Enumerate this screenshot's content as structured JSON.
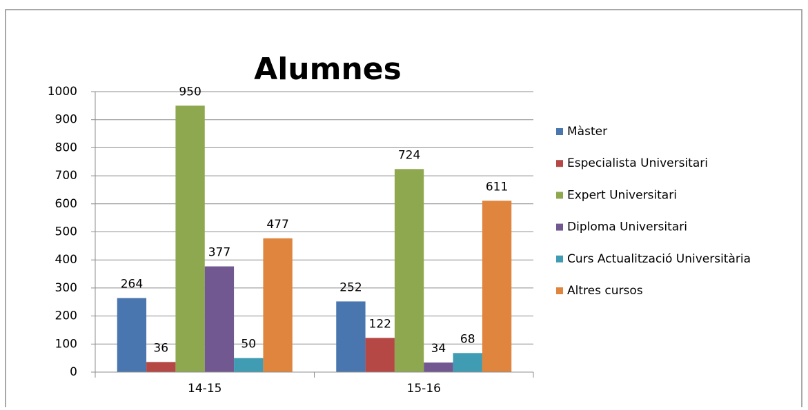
{
  "chart_data": {
    "type": "bar",
    "title": "Alumnes",
    "categories": [
      "14-15",
      "15-16"
    ],
    "series": [
      {
        "name": "Màster",
        "color": "#4a76b0",
        "values": [
          264,
          252
        ]
      },
      {
        "name": "Especialista Universitari",
        "color": "#b54845",
        "values": [
          36,
          122
        ]
      },
      {
        "name": "Expert Universitari",
        "color": "#8ea84f",
        "values": [
          950,
          724
        ]
      },
      {
        "name": "Diploma Universitari",
        "color": "#725891",
        "values": [
          377,
          34
        ]
      },
      {
        "name": "Curs Actualització Universitària",
        "color": "#3f9cb3",
        "values": [
          50,
          68
        ]
      },
      {
        "name": "Altres cursos",
        "color": "#e0853e",
        "values": [
          477,
          611
        ]
      }
    ],
    "ylim": [
      0,
      1000
    ],
    "yticks": [
      0,
      100,
      200,
      300,
      400,
      500,
      600,
      700,
      800,
      900,
      1000
    ],
    "grid": true,
    "legend": "right",
    "data_labels": true
  }
}
